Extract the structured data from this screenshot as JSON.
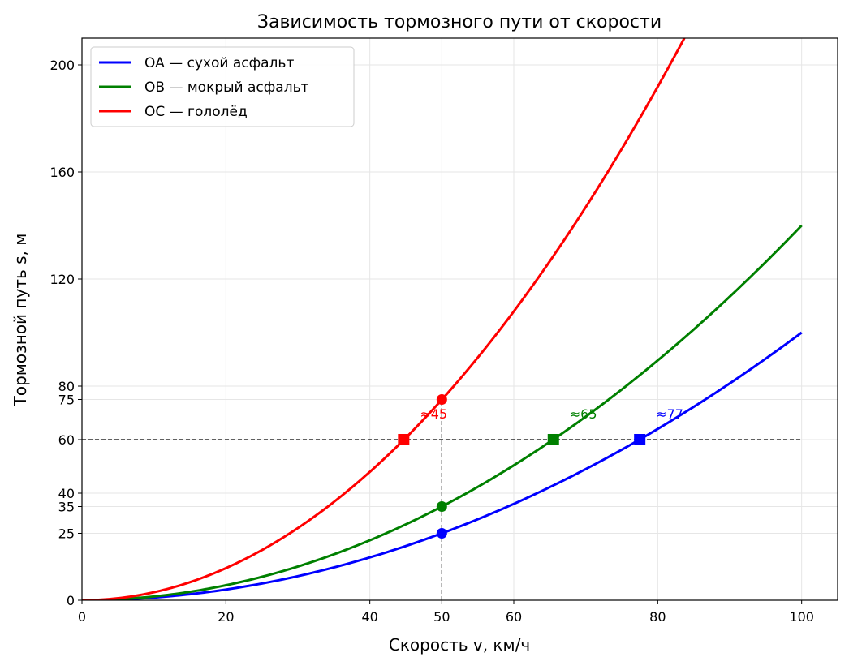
{
  "chart_data": {
    "type": "line",
    "title": "Зависимость тормозного пути от скорости",
    "xlabel": "Скорость v, км/ч",
    "ylabel": "Тормозной путь s, м",
    "xlim": [
      0,
      105
    ],
    "ylim": [
      0,
      210
    ],
    "xticks": [
      0,
      20,
      40,
      50,
      60,
      80,
      100
    ],
    "yticks": [
      0,
      25,
      35,
      40,
      60,
      75,
      80,
      120,
      160,
      200
    ],
    "grid": true,
    "legend_position": "top-left",
    "series": [
      {
        "name": "OA — сухой асфальт",
        "color": "#0000ff",
        "formula": "s = 0.01 * v^2",
        "x": [
          0,
          10,
          20,
          30,
          40,
          50,
          60,
          70,
          80,
          90,
          100
        ],
        "y": [
          0,
          1,
          4,
          9,
          16,
          25,
          36,
          49,
          64,
          81,
          100
        ]
      },
      {
        "name": "OB — мокрый асфальт",
        "color": "#008000",
        "formula": "s = 0.014 * v^2",
        "x": [
          0,
          10,
          20,
          30,
          40,
          50,
          60,
          70,
          80,
          90,
          100
        ],
        "y": [
          0,
          1.4,
          5.6,
          12.6,
          22.4,
          35,
          50.4,
          68.6,
          89.6,
          113.4,
          140
        ]
      },
      {
        "name": "OC — гололёд",
        "color": "#ff0000",
        "formula": "s = 0.03 * v^2",
        "x": [
          0,
          10,
          20,
          30,
          40,
          50,
          60,
          70,
          80,
          83.7
        ],
        "y": [
          0,
          3,
          12,
          27,
          48,
          75,
          108,
          147,
          192,
          210
        ]
      }
    ],
    "reference_lines": [
      {
        "orientation": "horizontal",
        "y": 60,
        "x_range": [
          0,
          100
        ],
        "style": "dashed",
        "color": "#000000"
      },
      {
        "orientation": "vertical",
        "x": 50,
        "y_range": [
          0,
          75
        ],
        "style": "dashed",
        "color": "#000000"
      }
    ],
    "points_at_v50": [
      {
        "x": 50,
        "y": 25,
        "color": "#0000ff",
        "marker": "circle"
      },
      {
        "x": 50,
        "y": 35,
        "color": "#008000",
        "marker": "circle"
      },
      {
        "x": 50,
        "y": 75,
        "color": "#ff0000",
        "marker": "circle"
      }
    ],
    "points_at_s60": [
      {
        "x": 44.7,
        "y": 60,
        "color": "#ff0000",
        "marker": "square",
        "label": "≈45"
      },
      {
        "x": 65.5,
        "y": 60,
        "color": "#008000",
        "marker": "square",
        "label": "≈65"
      },
      {
        "x": 77.5,
        "y": 60,
        "color": "#0000ff",
        "marker": "square",
        "label": "≈77"
      }
    ]
  }
}
